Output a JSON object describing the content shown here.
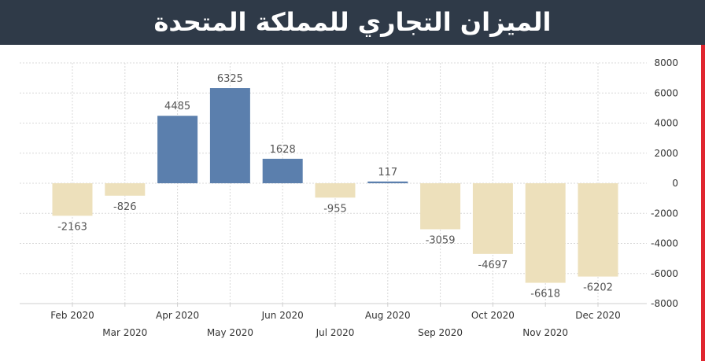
{
  "header": {
    "title": "الميزان التجاري للمملكة المتحدة"
  },
  "colors": {
    "banner": "#2f3a48",
    "positive": "#5b7fad",
    "negative": "#ede0bb",
    "accent_stripe": "#e0262f",
    "grid": "#d8d8d8"
  },
  "chart_data": {
    "type": "bar",
    "title": "",
    "xlabel": "",
    "ylabel": "",
    "categories": [
      "Feb 2020",
      "Mar 2020",
      "Apr 2020",
      "May 2020",
      "Jun 2020",
      "Jul 2020",
      "Aug 2020",
      "Sep 2020",
      "Oct 2020",
      "Nov 2020",
      "Dec 2020"
    ],
    "values": [
      -2163,
      -826,
      4485,
      6325,
      1628,
      -955,
      117,
      -3059,
      -4697,
      -6618,
      -6202
    ],
    "ylim": [
      -8000,
      8000
    ],
    "yticks": [
      8000,
      6000,
      4000,
      2000,
      0,
      -2000,
      -4000,
      -6000,
      -8000
    ],
    "ytick_labels": [
      "8000",
      "6000",
      "4000",
      "2000",
      "0",
      "-2000",
      "-4000",
      "-6000",
      "-8000"
    ],
    "y_axis_side": "right",
    "grid": true,
    "legend": "none"
  }
}
